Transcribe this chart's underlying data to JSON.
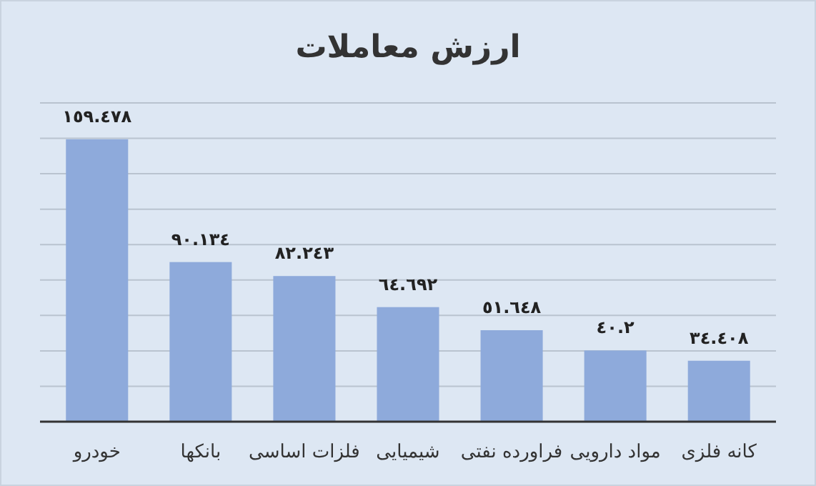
{
  "chart_data": {
    "type": "bar",
    "title": "ارزش معاملات",
    "categories": [
      "خودرو",
      "بانکها",
      "فلزات اساسی",
      "شیمیایی",
      "فراورده نفتی",
      "مواد دارویی",
      "کانه فلزی"
    ],
    "values": [
      159.478,
      90.134,
      82.243,
      64.692,
      51.648,
      40.2,
      34.408
    ],
    "value_labels": [
      "١٥٩.٤٧٨",
      "٩٠.١٣٤",
      "٨٢.٢٤٣",
      "٦٤.٦٩٢",
      "٥١.٦٤٨",
      "٤٠.٢",
      "٣٤.٤٠٨"
    ],
    "color": "#8eaadb",
    "ylim": [
      0,
      180
    ],
    "yticks": [
      {
        "value": 0,
        "label": null
      },
      {
        "value": 20,
        "label": null
      },
      {
        "value": 40,
        "label": null
      },
      {
        "value": 60,
        "label": null
      },
      {
        "value": 80,
        "label": null
      },
      {
        "value": 100,
        "label": null
      },
      {
        "value": 120,
        "label": null
      },
      {
        "value": 140,
        "label": null
      },
      {
        "value": 160,
        "label": null
      },
      {
        "value": 180,
        "label": null
      }
    ],
    "tick_labels": "x",
    "grid": "y"
  }
}
